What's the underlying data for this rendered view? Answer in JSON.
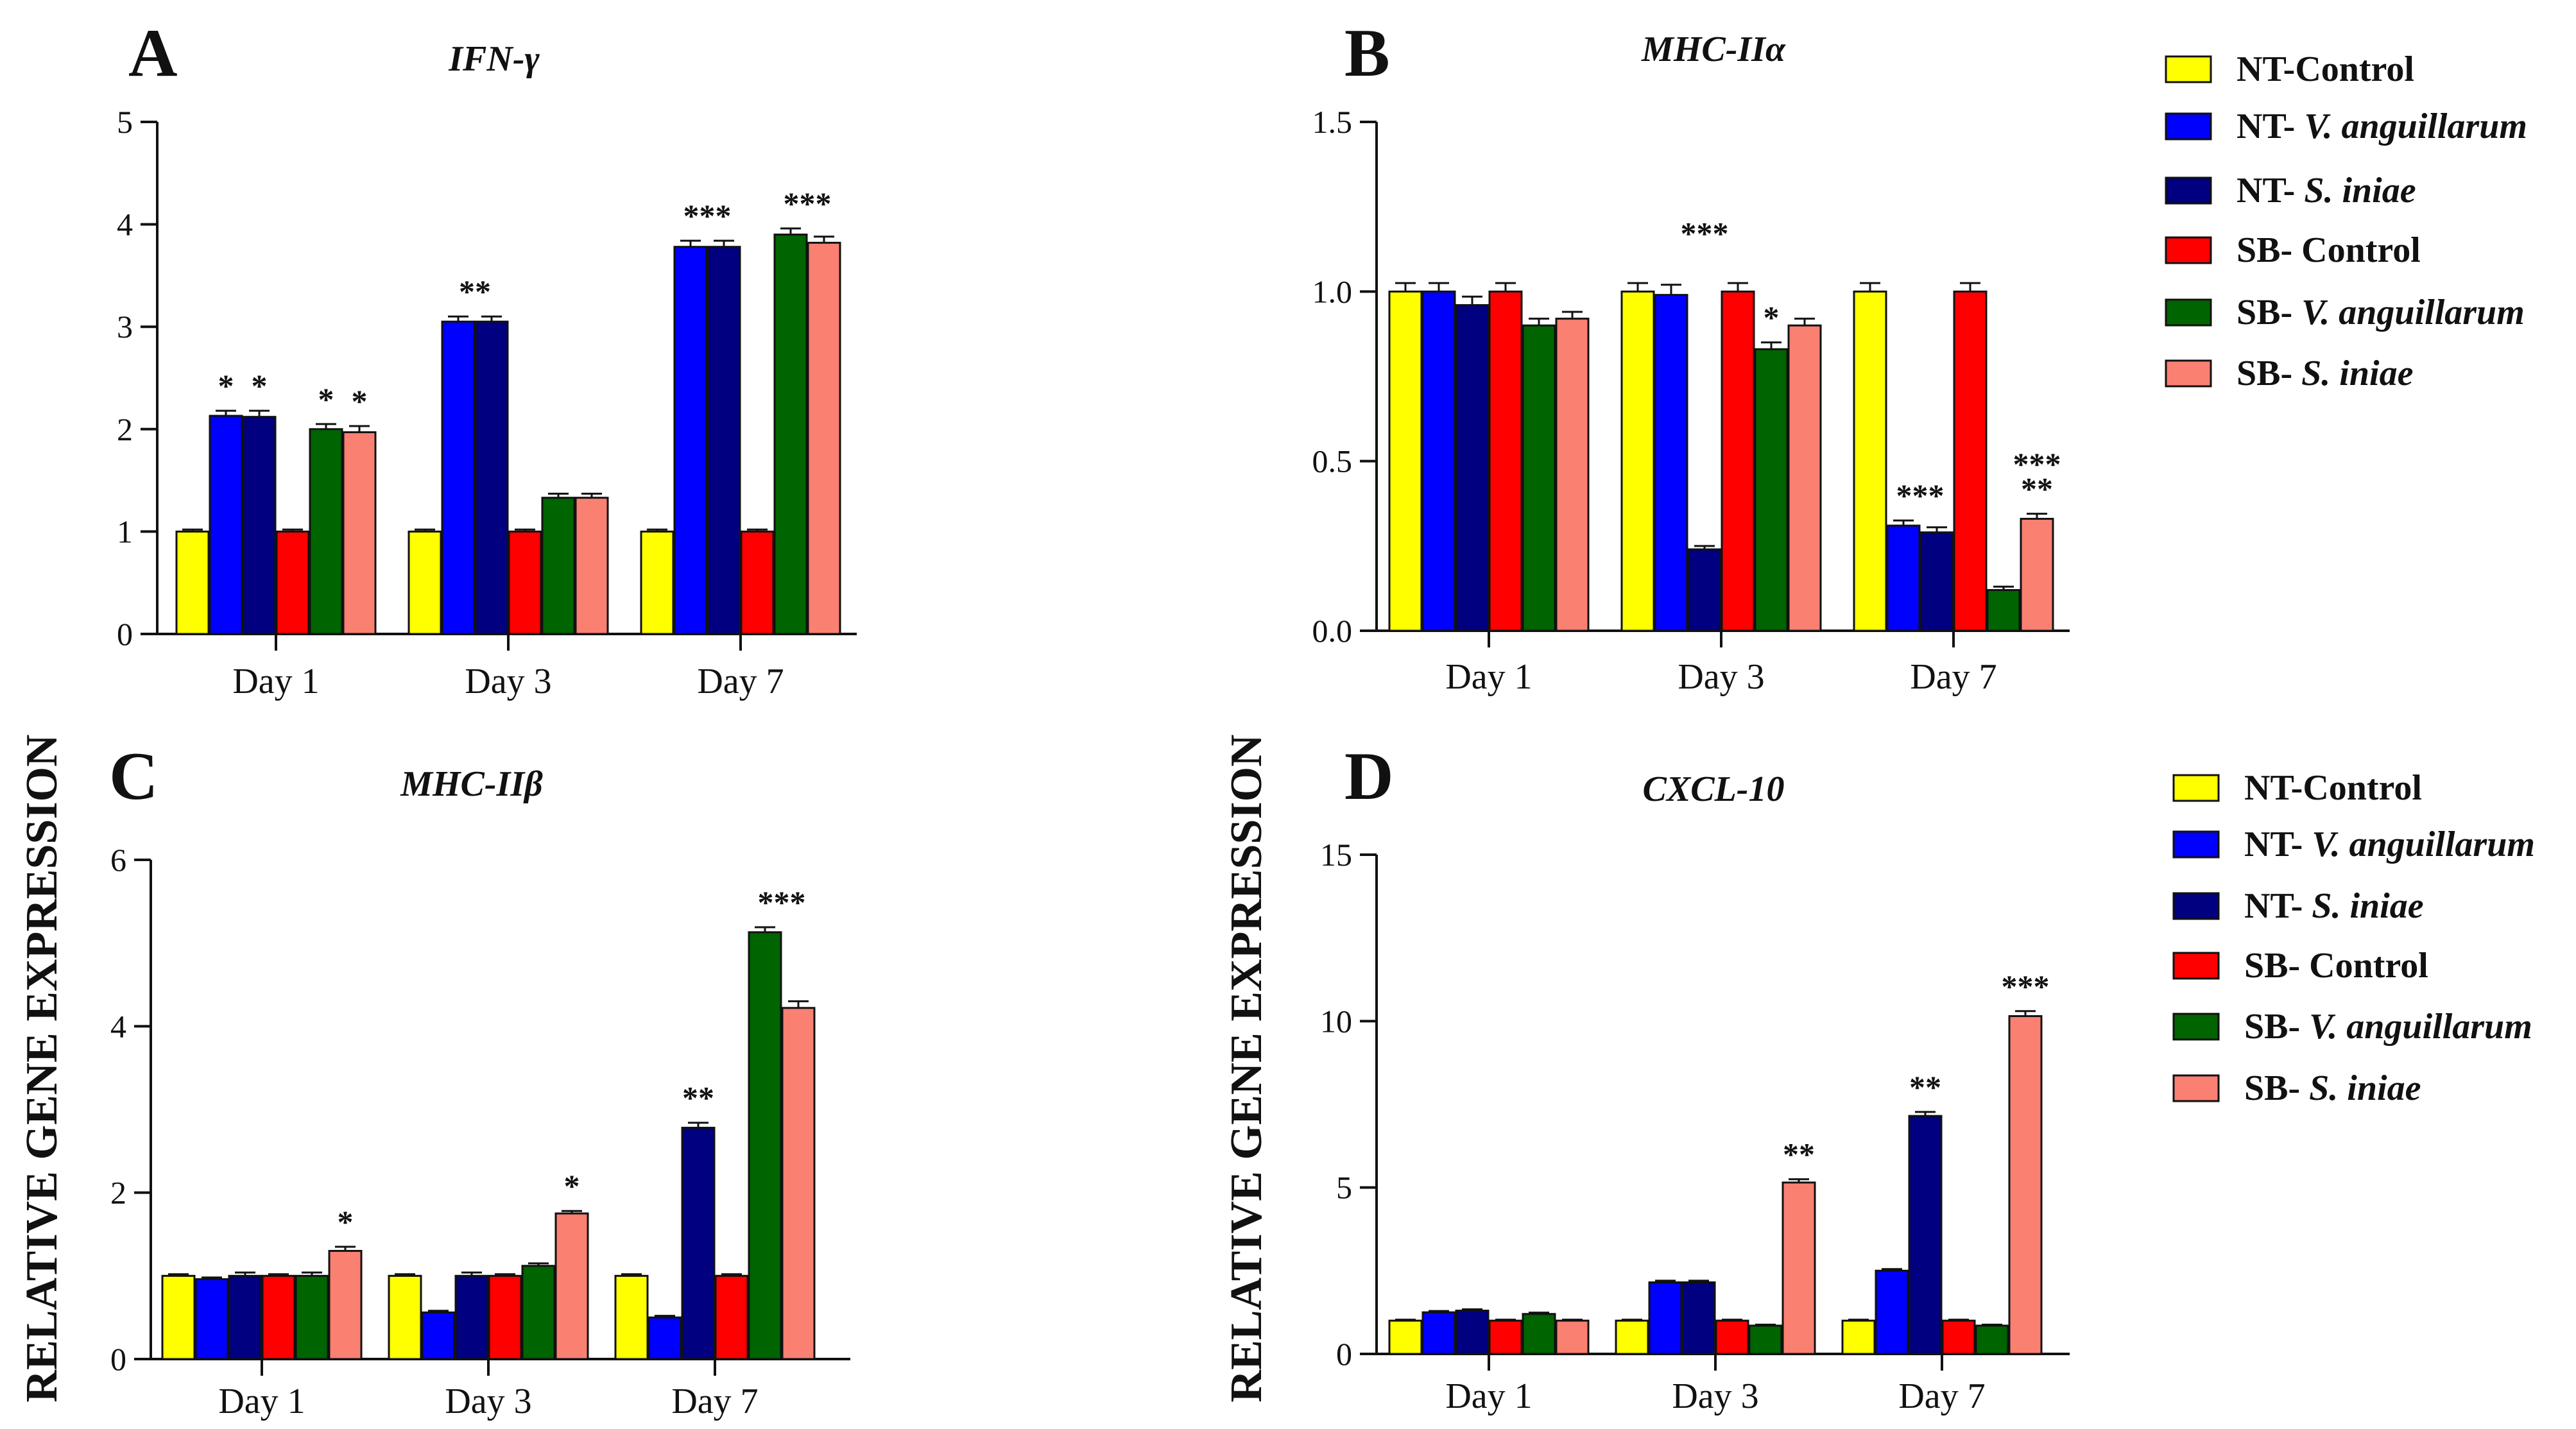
{
  "figure": {
    "ylabel": "RELATIVE GENE EXPRESSION",
    "series": [
      {
        "prefix": "NT-",
        "name": "Control",
        "italic": false,
        "color": "#FFFF00"
      },
      {
        "prefix": "NT- ",
        "name": "V. anguillarum",
        "italic": true,
        "color": "#0000FF"
      },
      {
        "prefix": "NT- ",
        "name": "S. iniae",
        "italic": true,
        "color": "#000080"
      },
      {
        "prefix": "SB- ",
        "name": "Control",
        "italic": false,
        "color": "#FF0000"
      },
      {
        "prefix": "SB- ",
        "name": "V. anguillarum",
        "italic": true,
        "color": "#006400"
      },
      {
        "prefix": "SB- ",
        "name": "S. iniae",
        "italic": true,
        "color": "#FA8072"
      }
    ]
  },
  "chart_data": [
    {
      "panel": "A",
      "type": "bar",
      "title": "IFN-γ",
      "categories": [
        "Day 1",
        "Day 3",
        "Day 7"
      ],
      "ylim": [
        0,
        5
      ],
      "yticks": [
        "0",
        "1",
        "2",
        "3",
        "4",
        "5"
      ],
      "ytick_values": [
        0,
        1,
        2,
        3,
        4,
        5
      ],
      "series": [
        {
          "name": "NT-Control",
          "values": [
            1.0,
            1.0,
            1.0
          ],
          "errors": [
            0.02,
            0.02,
            0.02
          ]
        },
        {
          "name": "NT- V. anguillarum",
          "values": [
            2.13,
            3.05,
            3.78
          ],
          "errors": [
            0.05,
            0.05,
            0.06
          ]
        },
        {
          "name": "NT- S. iniae",
          "values": [
            2.12,
            3.05,
            3.78
          ],
          "errors": [
            0.06,
            0.05,
            0.06
          ]
        },
        {
          "name": "SB- Control",
          "values": [
            1.0,
            1.0,
            1.0
          ],
          "errors": [
            0.02,
            0.02,
            0.02
          ]
        },
        {
          "name": "SB- V. anguillarum",
          "values": [
            2.0,
            1.33,
            3.9
          ],
          "errors": [
            0.05,
            0.04,
            0.06
          ]
        },
        {
          "name": "SB- S. iniae",
          "values": [
            1.97,
            1.33,
            3.82
          ],
          "errors": [
            0.06,
            0.04,
            0.06
          ]
        }
      ],
      "annotations": [
        {
          "category": 0,
          "series": 1,
          "text": "*"
        },
        {
          "category": 0,
          "series": 2,
          "text": "*"
        },
        {
          "category": 0,
          "series": 4,
          "text": "*"
        },
        {
          "category": 0,
          "series": 5,
          "text": "*"
        },
        {
          "category": 1,
          "series": 1.5,
          "text": "**"
        },
        {
          "category": 2,
          "series": 1.5,
          "text": "***"
        },
        {
          "category": 2,
          "series": 4.5,
          "text": "***"
        }
      ]
    },
    {
      "panel": "B",
      "type": "bar",
      "title": "MHC-IIα",
      "categories": [
        "Day 1",
        "Day 3",
        "Day 7"
      ],
      "ylim": [
        0,
        1.5
      ],
      "yticks": [
        "0.0",
        "0.5",
        "1.0",
        "1.5"
      ],
      "ytick_values": [
        0,
        0.5,
        1.0,
        1.5
      ],
      "series": [
        {
          "name": "NT-Control",
          "values": [
            1.0,
            1.0,
            1.0
          ],
          "errors": [
            0.025,
            0.025,
            0.025
          ]
        },
        {
          "name": "NT- V. anguillarum",
          "values": [
            1.0,
            0.99,
            0.31
          ],
          "errors": [
            0.025,
            0.03,
            0.015
          ]
        },
        {
          "name": "NT- S. iniae",
          "values": [
            0.96,
            0.24,
            0.29
          ],
          "errors": [
            0.025,
            0.01,
            0.015
          ]
        },
        {
          "name": "SB- Control",
          "values": [
            1.0,
            1.0,
            1.0
          ],
          "errors": [
            0.025,
            0.025,
            0.025
          ]
        },
        {
          "name": "SB- V. anguillarum",
          "values": [
            0.9,
            0.83,
            0.12
          ],
          "errors": [
            0.02,
            0.02,
            0.01
          ]
        },
        {
          "name": "SB- S. iniae",
          "values": [
            0.92,
            0.9,
            0.33
          ],
          "errors": [
            0.02,
            0.02,
            0.015
          ]
        }
      ],
      "annotations": [
        {
          "category": 1,
          "series": 2,
          "text": "***",
          "y": 1.14
        },
        {
          "category": 1,
          "series": 4,
          "text": "*"
        },
        {
          "category": 2,
          "series": 1.5,
          "text": "***"
        },
        {
          "category": 2,
          "series": 5,
          "text": "**"
        },
        {
          "category": 2,
          "series": 5,
          "text": "***",
          "y": 0.46
        }
      ]
    },
    {
      "panel": "C",
      "type": "bar",
      "title": "MHC-IIβ",
      "categories": [
        "Day 1",
        "Day 3",
        "Day 7"
      ],
      "ylim": [
        0,
        6
      ],
      "yticks": [
        "0",
        "2",
        "4",
        "6"
      ],
      "ytick_values": [
        0,
        2,
        4,
        6
      ],
      "series": [
        {
          "name": "NT-Control",
          "values": [
            1.0,
            1.0,
            1.0
          ],
          "errors": [
            0.02,
            0.02,
            0.02
          ]
        },
        {
          "name": "NT- V. anguillarum",
          "values": [
            0.96,
            0.56,
            0.5
          ],
          "errors": [
            0.02,
            0.02,
            0.02
          ]
        },
        {
          "name": "NT- S. iniae",
          "values": [
            1.0,
            1.0,
            2.78
          ],
          "errors": [
            0.04,
            0.04,
            0.06
          ]
        },
        {
          "name": "SB- Control",
          "values": [
            1.0,
            1.0,
            1.0
          ],
          "errors": [
            0.02,
            0.02,
            0.02
          ]
        },
        {
          "name": "SB- V. anguillarum",
          "values": [
            1.0,
            1.12,
            5.13
          ],
          "errors": [
            0.04,
            0.03,
            0.06
          ]
        },
        {
          "name": "SB- S. iniae",
          "values": [
            1.3,
            1.75,
            4.22
          ],
          "errors": [
            0.05,
            0.03,
            0.08
          ]
        }
      ],
      "annotations": [
        {
          "category": 0,
          "series": 5,
          "text": "*"
        },
        {
          "category": 1,
          "series": 5,
          "text": "*"
        },
        {
          "category": 2,
          "series": 2,
          "text": "**"
        },
        {
          "category": 2,
          "series": 4.5,
          "text": "***"
        }
      ]
    },
    {
      "panel": "D",
      "type": "bar",
      "title": "CXCL-10",
      "categories": [
        "Day 1",
        "Day 3",
        "Day 7"
      ],
      "ylim": [
        0,
        15
      ],
      "yticks": [
        "0",
        "5",
        "10",
        "15"
      ],
      "ytick_values": [
        0,
        5,
        10,
        15
      ],
      "series": [
        {
          "name": "NT-Control",
          "values": [
            1.0,
            1.0,
            1.0
          ],
          "errors": [
            0.03,
            0.03,
            0.03
          ]
        },
        {
          "name": "NT- V. anguillarum",
          "values": [
            1.25,
            2.15,
            2.5
          ],
          "errors": [
            0.04,
            0.05,
            0.05
          ]
        },
        {
          "name": "NT- S. iniae",
          "values": [
            1.3,
            2.15,
            7.15
          ],
          "errors": [
            0.04,
            0.05,
            0.12
          ]
        },
        {
          "name": "SB- Control",
          "values": [
            1.0,
            1.0,
            1.0
          ],
          "errors": [
            0.03,
            0.03,
            0.03
          ]
        },
        {
          "name": "SB- V. anguillarum",
          "values": [
            1.2,
            0.85,
            0.85
          ],
          "errors": [
            0.04,
            0.03,
            0.03
          ]
        },
        {
          "name": "SB- S. iniae",
          "values": [
            1.0,
            5.15,
            10.15
          ],
          "errors": [
            0.03,
            0.1,
            0.15
          ]
        }
      ],
      "annotations": [
        {
          "category": 1,
          "series": 5,
          "text": "**"
        },
        {
          "category": 2,
          "series": 2,
          "text": "**"
        },
        {
          "category": 2,
          "series": 5,
          "text": "***"
        }
      ]
    }
  ]
}
